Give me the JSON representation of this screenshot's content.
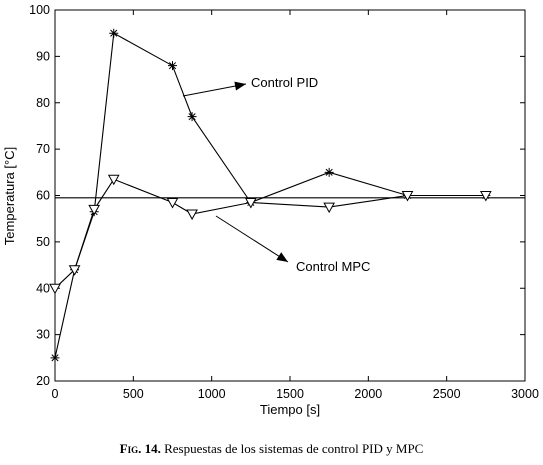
{
  "chart_data": {
    "type": "line",
    "xlabel": "Tiempo [s]",
    "ylabel": "Temperatura [°C]",
    "xlim": [
      0,
      3000
    ],
    "ylim": [
      20,
      100
    ],
    "xticks": [
      0,
      500,
      1000,
      1500,
      2000,
      2500,
      3000
    ],
    "yticks": [
      20,
      30,
      40,
      50,
      60,
      70,
      80,
      90,
      100
    ],
    "grid": false,
    "series": [
      {
        "name": "Control PID",
        "marker": "asterisk",
        "x": [
          0,
          125,
          250,
          375,
          750,
          875,
          1250,
          1750,
          2250,
          2750
        ],
        "y": [
          25,
          44,
          56.5,
          95,
          88,
          77,
          58.5,
          65,
          60,
          60
        ]
      },
      {
        "name": "Control MPC",
        "marker": "triangle-down",
        "x": [
          0,
          125,
          250,
          375,
          750,
          875,
          1250,
          1750,
          2250,
          2750
        ],
        "y": [
          40,
          44,
          57,
          63.5,
          58.5,
          56,
          58.5,
          57.5,
          60,
          60
        ]
      }
    ],
    "reference_line": {
      "y": 59.5
    },
    "annotations": [
      {
        "text": "Control PID",
        "target_series": "Control PID"
      },
      {
        "text": "Control MPC",
        "target_series": "Control MPC"
      }
    ]
  },
  "caption": {
    "label": "Fig. 14.",
    "text": " Respuestas de los sistemas de control PID y MPC"
  }
}
